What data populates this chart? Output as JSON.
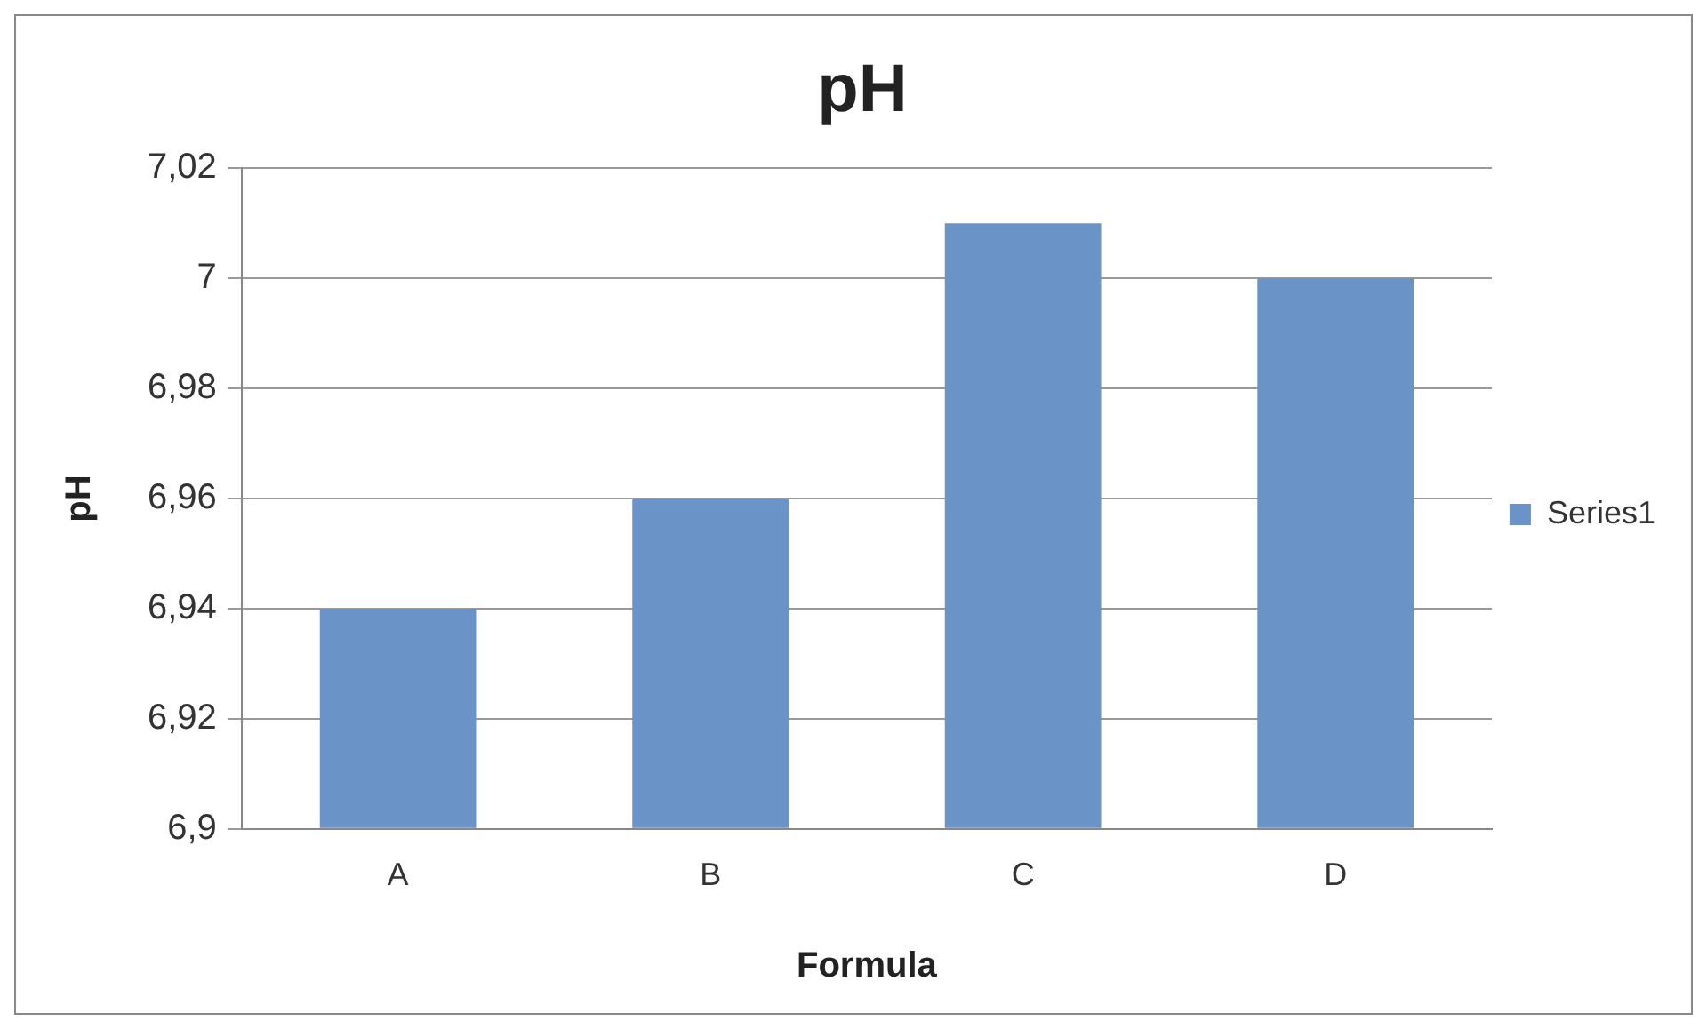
{
  "chart_data": {
    "type": "bar",
    "title": "pH",
    "xlabel": "Formula",
    "ylabel": "pH",
    "categories": [
      "A",
      "B",
      "C",
      "D"
    ],
    "series": [
      {
        "name": "Series1",
        "color": "#6a93c8",
        "values": [
          6.94,
          6.96,
          7.01,
          7.0
        ]
      }
    ],
    "ylim": [
      6.9,
      7.02
    ],
    "yticks": [
      {
        "value": 6.9,
        "label": "6,9"
      },
      {
        "value": 6.92,
        "label": "6,92"
      },
      {
        "value": 6.94,
        "label": "6,94"
      },
      {
        "value": 6.96,
        "label": "6,96"
      },
      {
        "value": 6.98,
        "label": "6,98"
      },
      {
        "value": 7,
        "label": "7"
      },
      {
        "value": 7.02,
        "label": "7,02"
      }
    ],
    "grid": "y",
    "legend": "right"
  }
}
